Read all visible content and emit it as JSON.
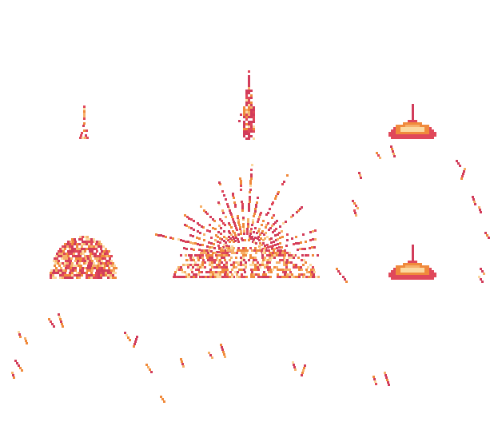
{
  "palette": {
    "crimson": "#d23c5a",
    "red": "#e0485a",
    "orange": "#f08a3c",
    "peach": "#f6b069",
    "cream": "#fbd9a0",
    "background": "#ffffff"
  },
  "sprites": [
    {
      "name": "small-spark-sprite",
      "kind": "spark",
      "icon": "spark-icon"
    },
    {
      "name": "tall-flame-spike-sprite",
      "kind": "spike",
      "icon": "flame-spike-icon"
    },
    {
      "name": "fire-dome-top-sprite",
      "kind": "dome",
      "icon": "fire-dome-icon"
    },
    {
      "name": "ember-mound-sprite",
      "kind": "mound",
      "icon": "ember-mound-icon"
    },
    {
      "name": "burst-explosion-sprite",
      "kind": "burst",
      "icon": "explosion-burst-icon"
    },
    {
      "name": "fire-dome-bottom-sprite",
      "kind": "dome",
      "icon": "fire-dome-icon"
    },
    {
      "name": "streak-particles",
      "kind": "streaks",
      "icon": "ember-streak-icon"
    }
  ]
}
